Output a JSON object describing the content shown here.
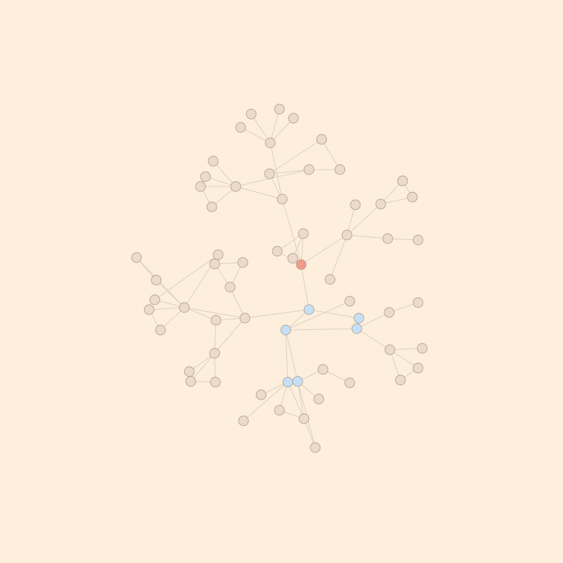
{
  "background_color": "#fdefdc",
  "colors": {
    "node_default": "#eedacb",
    "node_highlight": "#f39a88",
    "node_selected": "#c6dff4",
    "edge": "#dccfc2",
    "node_stroke": "#b3a79d"
  },
  "graph": {
    "nodes": [
      {
        "id": "n0",
        "state": "highlight"
      },
      {
        "id": "n1",
        "state": "default"
      },
      {
        "id": "n2",
        "state": "default"
      },
      {
        "id": "n3",
        "state": "default"
      },
      {
        "id": "n4",
        "state": "default"
      },
      {
        "id": "n5",
        "state": "default"
      },
      {
        "id": "n6",
        "state": "default"
      },
      {
        "id": "n7",
        "state": "default"
      },
      {
        "id": "n8",
        "state": "default"
      },
      {
        "id": "n9",
        "state": "default"
      },
      {
        "id": "n10",
        "state": "default"
      },
      {
        "id": "n11",
        "state": "default"
      },
      {
        "id": "n12",
        "state": "default"
      },
      {
        "id": "n13",
        "state": "default"
      },
      {
        "id": "n14",
        "state": "default"
      },
      {
        "id": "n15",
        "state": "default"
      },
      {
        "id": "n16",
        "state": "default"
      },
      {
        "id": "n17",
        "state": "default"
      },
      {
        "id": "n18",
        "state": "default"
      },
      {
        "id": "n19",
        "state": "default"
      },
      {
        "id": "n20",
        "state": "default"
      },
      {
        "id": "n21",
        "state": "default"
      },
      {
        "id": "n22",
        "state": "default"
      },
      {
        "id": "n23",
        "state": "default"
      },
      {
        "id": "n24",
        "state": "default"
      },
      {
        "id": "n25",
        "state": "default"
      },
      {
        "id": "n26",
        "state": "default"
      },
      {
        "id": "n27",
        "state": "default"
      },
      {
        "id": "n28",
        "state": "default"
      },
      {
        "id": "n29",
        "state": "default"
      },
      {
        "id": "n30",
        "state": "default"
      },
      {
        "id": "n31",
        "state": "selected"
      },
      {
        "id": "n32",
        "state": "selected"
      },
      {
        "id": "n33",
        "state": "default"
      },
      {
        "id": "n34",
        "state": "default"
      },
      {
        "id": "n35",
        "state": "default"
      },
      {
        "id": "n36",
        "state": "default"
      },
      {
        "id": "n37",
        "state": "default"
      },
      {
        "id": "n38",
        "state": "default"
      },
      {
        "id": "n39",
        "state": "default"
      },
      {
        "id": "n40",
        "state": "default"
      },
      {
        "id": "n41",
        "state": "default"
      },
      {
        "id": "n42",
        "state": "default"
      },
      {
        "id": "n43",
        "state": "default"
      },
      {
        "id": "n44",
        "state": "default"
      },
      {
        "id": "n45",
        "state": "default"
      },
      {
        "id": "n46",
        "state": "default"
      },
      {
        "id": "n47",
        "state": "default"
      },
      {
        "id": "n48",
        "state": "default"
      },
      {
        "id": "n49",
        "state": "selected"
      },
      {
        "id": "n50",
        "state": "selected"
      },
      {
        "id": "n51",
        "state": "default"
      },
      {
        "id": "n52",
        "state": "default"
      },
      {
        "id": "n53",
        "state": "default"
      },
      {
        "id": "n54",
        "state": "default"
      },
      {
        "id": "n55",
        "state": "default"
      },
      {
        "id": "n56",
        "state": "selected"
      },
      {
        "id": "n57",
        "state": "selected"
      },
      {
        "id": "n58",
        "state": "default"
      },
      {
        "id": "n59",
        "state": "default"
      },
      {
        "id": "n60",
        "state": "default"
      },
      {
        "id": "n61",
        "state": "default"
      },
      {
        "id": "n62",
        "state": "default"
      },
      {
        "id": "n63",
        "state": "default"
      },
      {
        "id": "n64",
        "state": "default"
      }
    ],
    "edges": [
      [
        "n0",
        "n1"
      ],
      [
        "n0",
        "n2"
      ],
      [
        "n0",
        "n3"
      ],
      [
        "n0",
        "n4"
      ],
      [
        "n0",
        "n26"
      ],
      [
        "n0",
        "n31"
      ],
      [
        "n1",
        "n2"
      ],
      [
        "n1",
        "n3"
      ],
      [
        "n4",
        "n5"
      ],
      [
        "n4",
        "n6"
      ],
      [
        "n4",
        "n12"
      ],
      [
        "n5",
        "n7"
      ],
      [
        "n5",
        "n8"
      ],
      [
        "n5",
        "n9"
      ],
      [
        "n5",
        "n10"
      ],
      [
        "n6",
        "n11"
      ],
      [
        "n6",
        "n14"
      ],
      [
        "n11",
        "n12"
      ],
      [
        "n11",
        "n13"
      ],
      [
        "n13",
        "n14"
      ],
      [
        "n12",
        "n15"
      ],
      [
        "n12",
        "n16"
      ],
      [
        "n12",
        "n17"
      ],
      [
        "n12",
        "n18"
      ],
      [
        "n16",
        "n17"
      ],
      [
        "n17",
        "n18"
      ],
      [
        "n26",
        "n19"
      ],
      [
        "n26",
        "n20"
      ],
      [
        "n26",
        "n22"
      ],
      [
        "n26",
        "n25"
      ],
      [
        "n19",
        "n21"
      ],
      [
        "n19",
        "n24"
      ],
      [
        "n21",
        "n24"
      ],
      [
        "n22",
        "n23"
      ],
      [
        "n31",
        "n32"
      ],
      [
        "n31",
        "n33"
      ],
      [
        "n31",
        "n49"
      ],
      [
        "n33",
        "n34"
      ],
      [
        "n33",
        "n42"
      ],
      [
        "n33",
        "n44"
      ],
      [
        "n34",
        "n35"
      ],
      [
        "n34",
        "n36"
      ],
      [
        "n35",
        "n36"
      ],
      [
        "n42",
        "n37"
      ],
      [
        "n42",
        "n38"
      ],
      [
        "n42",
        "n39"
      ],
      [
        "n42",
        "n40"
      ],
      [
        "n42",
        "n41"
      ],
      [
        "n37",
        "n40"
      ],
      [
        "n38",
        "n39"
      ],
      [
        "n44",
        "n45"
      ],
      [
        "n44",
        "n46"
      ],
      [
        "n44",
        "n47"
      ],
      [
        "n44",
        "n48"
      ],
      [
        "n46",
        "n47"
      ],
      [
        "n32",
        "n50"
      ],
      [
        "n32",
        "n51"
      ],
      [
        "n32",
        "n56"
      ],
      [
        "n32",
        "n57"
      ],
      [
        "n50",
        "n52"
      ],
      [
        "n50",
        "n53"
      ],
      [
        "n52",
        "n54"
      ],
      [
        "n53",
        "n55"
      ],
      [
        "n53",
        "n63"
      ],
      [
        "n53",
        "n64"
      ],
      [
        "n55",
        "n64"
      ],
      [
        "n56",
        "n57"
      ],
      [
        "n56",
        "n58"
      ],
      [
        "n56",
        "n59"
      ],
      [
        "n56",
        "n60"
      ],
      [
        "n56",
        "n61"
      ],
      [
        "n57",
        "n62"
      ],
      [
        "n57",
        "n61"
      ],
      [
        "n61",
        "n60"
      ]
    ]
  }
}
